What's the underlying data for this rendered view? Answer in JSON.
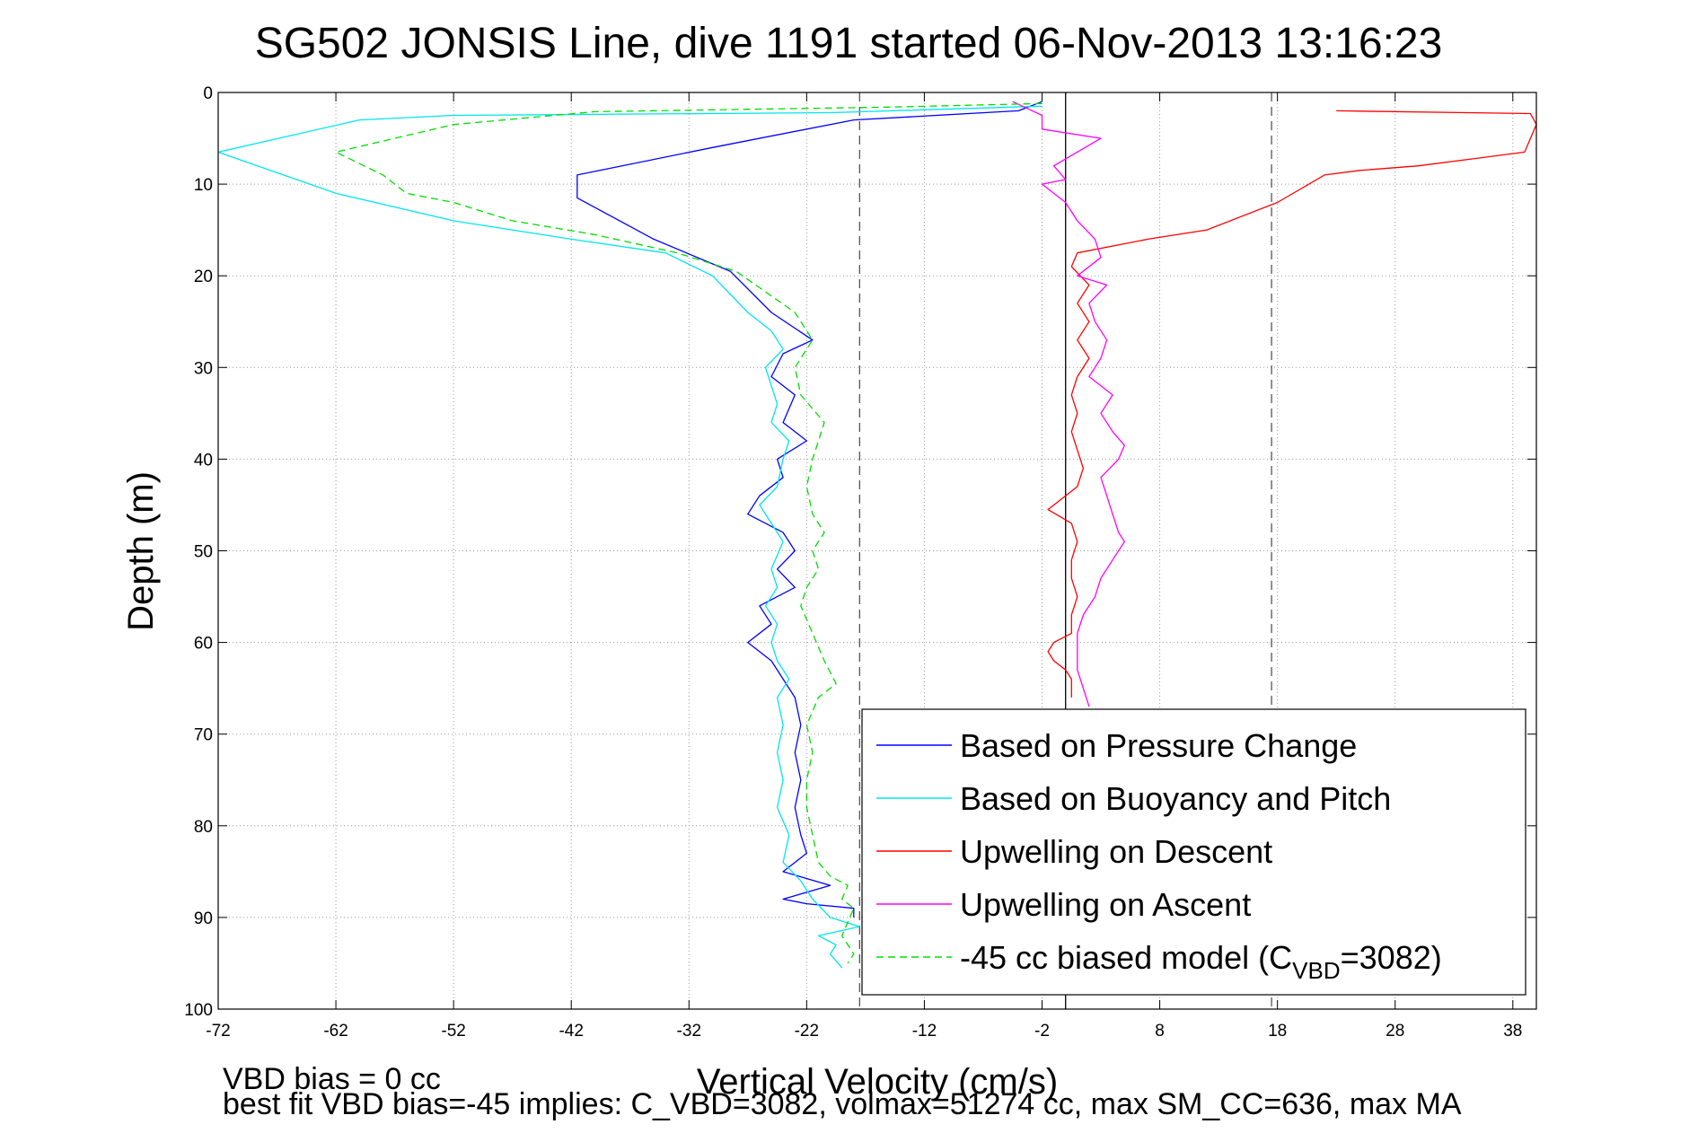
{
  "chart_data": {
    "type": "line",
    "title": "SG502 JONSIS Line, dive 1191 started 06-Nov-2013 13:16:23",
    "xlabel": "Vertical Velocity (cm/s)",
    "ylabel": "Depth (m)",
    "xlim": [
      -72,
      40
    ],
    "ylim": [
      0,
      100
    ],
    "y_reversed": true,
    "grid": true,
    "legend_position": "bottom-right",
    "xticks": [
      -72,
      -62,
      -52,
      -42,
      -32,
      -22,
      -12,
      -2,
      8,
      18,
      28,
      38
    ],
    "yticks": [
      0,
      10,
      20,
      30,
      40,
      50,
      60,
      70,
      80,
      90,
      100
    ],
    "reference_lines": [
      {
        "x": -17.5,
        "style": "dashed",
        "color": "#555555"
      },
      {
        "x": 0,
        "style": "solid",
        "color": "#000000"
      },
      {
        "x": 17.5,
        "style": "dashed",
        "color": "#555555"
      }
    ],
    "series": [
      {
        "name": "Based on Pressure Change",
        "color": "#0000ff",
        "dash": "none",
        "points": [
          [
            -2,
            1
          ],
          [
            -4,
            2
          ],
          [
            -18,
            3
          ],
          [
            -30,
            6
          ],
          [
            -41.5,
            9
          ],
          [
            -41.5,
            11.5
          ],
          [
            -35,
            16
          ],
          [
            -28.5,
            19.5
          ],
          [
            -25,
            24
          ],
          [
            -21.5,
            27
          ],
          [
            -24,
            28.5
          ],
          [
            -25,
            31
          ],
          [
            -23,
            33
          ],
          [
            -24,
            36
          ],
          [
            -22,
            38
          ],
          [
            -24.5,
            40
          ],
          [
            -24,
            42
          ],
          [
            -26,
            44
          ],
          [
            -27,
            46
          ],
          [
            -24,
            48
          ],
          [
            -23,
            50
          ],
          [
            -24.5,
            52
          ],
          [
            -23,
            54
          ],
          [
            -26,
            56
          ],
          [
            -25,
            58
          ],
          [
            -27,
            60
          ],
          [
            -25,
            62
          ],
          [
            -24,
            64
          ],
          [
            -23,
            66
          ],
          [
            -22.5,
            69
          ],
          [
            -23,
            72
          ],
          [
            -22.5,
            75
          ],
          [
            -23,
            78
          ],
          [
            -22.5,
            81
          ],
          [
            -22,
            83
          ],
          [
            -24,
            85
          ],
          [
            -20,
            86.5
          ],
          [
            -24,
            88
          ],
          [
            -22,
            88.5
          ],
          [
            -18,
            89
          ],
          [
            -18,
            90
          ]
        ]
      },
      {
        "name": "Based on Buoyancy and Pitch",
        "color": "#00e5ee",
        "dash": "none",
        "points": [
          [
            -2,
            1.5
          ],
          [
            -20,
            2.2
          ],
          [
            -52,
            2.5
          ],
          [
            -60,
            3
          ],
          [
            -72,
            6.5
          ],
          [
            -62,
            11
          ],
          [
            -52,
            14
          ],
          [
            -42,
            16
          ],
          [
            -34,
            17.5
          ],
          [
            -30,
            20
          ],
          [
            -27,
            24
          ],
          [
            -25,
            26
          ],
          [
            -24,
            28
          ],
          [
            -25.5,
            30
          ],
          [
            -25,
            32
          ],
          [
            -24.5,
            34
          ],
          [
            -25,
            36
          ],
          [
            -23.5,
            38
          ],
          [
            -24,
            40
          ],
          [
            -24.5,
            43
          ],
          [
            -26,
            45
          ],
          [
            -25,
            47
          ],
          [
            -24,
            49
          ],
          [
            -25,
            52
          ],
          [
            -24.5,
            54
          ],
          [
            -25.5,
            56
          ],
          [
            -24.5,
            58
          ],
          [
            -25,
            60
          ],
          [
            -24.5,
            62
          ],
          [
            -23.5,
            64
          ],
          [
            -24.5,
            66
          ],
          [
            -24,
            69
          ],
          [
            -24.5,
            72
          ],
          [
            -24,
            75
          ],
          [
            -24.5,
            78
          ],
          [
            -23.5,
            81
          ],
          [
            -24,
            84
          ],
          [
            -22.5,
            86
          ],
          [
            -21.5,
            88
          ],
          [
            -20,
            90
          ],
          [
            -17.5,
            91
          ],
          [
            -21,
            92
          ],
          [
            -19.5,
            93
          ],
          [
            -20,
            94
          ],
          [
            -19,
            95.5
          ]
        ]
      },
      {
        "name": "Upwelling on Descent",
        "color": "#ff0000",
        "dash": "none",
        "points": [
          [
            23,
            2
          ],
          [
            39.5,
            2.3
          ],
          [
            40,
            3.5
          ],
          [
            39,
            6.5
          ],
          [
            30,
            8
          ],
          [
            25,
            8.5
          ],
          [
            22,
            9
          ],
          [
            18,
            12
          ],
          [
            12,
            15
          ],
          [
            7,
            16
          ],
          [
            1,
            17.5
          ],
          [
            0.5,
            19
          ],
          [
            2,
            21
          ],
          [
            1,
            23
          ],
          [
            2,
            25
          ],
          [
            1,
            27
          ],
          [
            2,
            29
          ],
          [
            1,
            31
          ],
          [
            0.5,
            33
          ],
          [
            1,
            35
          ],
          [
            0.5,
            37
          ],
          [
            1,
            39
          ],
          [
            1.5,
            41
          ],
          [
            1,
            43
          ],
          [
            -1.5,
            45.5
          ],
          [
            0.5,
            47
          ],
          [
            1,
            49
          ],
          [
            0.5,
            51
          ],
          [
            0.5,
            53
          ],
          [
            1,
            55
          ],
          [
            0.5,
            57
          ],
          [
            0.5,
            59
          ],
          [
            -1,
            60
          ],
          [
            -1.5,
            61
          ],
          [
            -1,
            62
          ],
          [
            0,
            63
          ],
          [
            0.5,
            64
          ],
          [
            0.5,
            66
          ]
        ]
      },
      {
        "name": "Upwelling on Ascent",
        "color": "#ff00ff",
        "dash": "none",
        "points": [
          [
            -4.5,
            1
          ],
          [
            -2,
            2.5
          ],
          [
            -2,
            4
          ],
          [
            3,
            5
          ],
          [
            -1,
            8
          ],
          [
            0,
            9.5
          ],
          [
            -2,
            10
          ],
          [
            0,
            12
          ],
          [
            1,
            14
          ],
          [
            2.5,
            16
          ],
          [
            3,
            18
          ],
          [
            1,
            20
          ],
          [
            3.5,
            21
          ],
          [
            2,
            23
          ],
          [
            2.5,
            25
          ],
          [
            3.5,
            27
          ],
          [
            3,
            29
          ],
          [
            2,
            31
          ],
          [
            4,
            33
          ],
          [
            3,
            35
          ],
          [
            4,
            37
          ],
          [
            5,
            38.5
          ],
          [
            4.5,
            40
          ],
          [
            3,
            42
          ],
          [
            3.5,
            44
          ],
          [
            4,
            46
          ],
          [
            4.5,
            48
          ],
          [
            5,
            49
          ],
          [
            4,
            51
          ],
          [
            3,
            53
          ],
          [
            2.5,
            55
          ],
          [
            1.5,
            57
          ],
          [
            1,
            59
          ],
          [
            1,
            61
          ],
          [
            1,
            63
          ],
          [
            1.5,
            65
          ],
          [
            2,
            67
          ]
        ]
      },
      {
        "name": "-45 cc biased model (C_VBD=3082)",
        "color": "#00dd00",
        "dash": "8,5",
        "points": [
          [
            -2,
            1.2
          ],
          [
            -15,
            1.6
          ],
          [
            -40,
            2.1
          ],
          [
            -52,
            3.5
          ],
          [
            -57,
            5
          ],
          [
            -62,
            6.5
          ],
          [
            -58,
            9
          ],
          [
            -56,
            11
          ],
          [
            -52,
            12
          ],
          [
            -47,
            14
          ],
          [
            -40,
            15.5
          ],
          [
            -33,
            17.5
          ],
          [
            -28,
            19.5
          ],
          [
            -23,
            24
          ],
          [
            -21.5,
            27
          ],
          [
            -23,
            30
          ],
          [
            -22.5,
            33
          ],
          [
            -20.5,
            36
          ],
          [
            -21,
            38
          ],
          [
            -21.5,
            40
          ],
          [
            -22,
            43
          ],
          [
            -21.5,
            46
          ],
          [
            -20.5,
            48
          ],
          [
            -21.5,
            50
          ],
          [
            -21,
            52
          ],
          [
            -22,
            54
          ],
          [
            -22.5,
            56
          ],
          [
            -21.5,
            59
          ],
          [
            -20.5,
            62
          ],
          [
            -19.5,
            64.5
          ],
          [
            -21,
            66
          ],
          [
            -22,
            69
          ],
          [
            -21.5,
            72
          ],
          [
            -22,
            75
          ],
          [
            -22,
            78
          ],
          [
            -21.5,
            81
          ],
          [
            -21,
            84
          ],
          [
            -20,
            85.5
          ],
          [
            -18.5,
            86.5
          ],
          [
            -19,
            88
          ],
          [
            -18,
            89
          ],
          [
            -19,
            92
          ],
          [
            -18,
            94
          ],
          [
            -18.5,
            95
          ]
        ]
      }
    ]
  },
  "legend": {
    "items": [
      {
        "label": "Based on Pressure Change",
        "color": "#0000ff",
        "dash": "none"
      },
      {
        "label": "Based on Buoyancy and Pitch",
        "color": "#00e5ee",
        "dash": "none"
      },
      {
        "label": "Upwelling on Descent",
        "color": "#ff0000",
        "dash": "none"
      },
      {
        "label": "Upwelling on Ascent",
        "color": "#ff00ff",
        "dash": "none"
      },
      {
        "label": "-45 cc biased model (C",
        "sub": "VBD",
        "suffix": "=3082)",
        "color": "#00dd00",
        "dash": "8,5"
      }
    ]
  },
  "footer": {
    "line1": "VBD bias = 0 cc",
    "line2": "best fit VBD bias=-45 implies: C_VBD=3082, volmax=51274 cc, max SM_CC=636, max MA"
  }
}
